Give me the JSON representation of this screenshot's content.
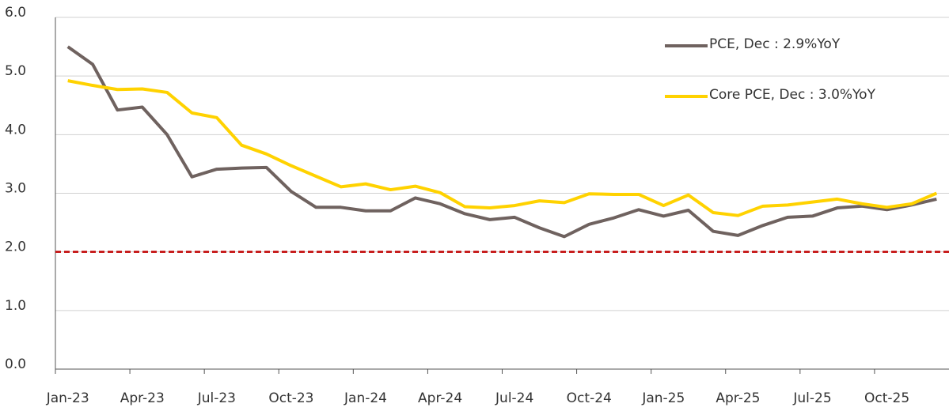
{
  "chart_data": {
    "type": "line",
    "categories": [
      "Jan-23",
      null,
      null,
      "Apr-23",
      null,
      null,
      "Jul-23",
      null,
      null,
      "Oct-23",
      null,
      null,
      "Jan-24",
      null,
      null,
      "Apr-24",
      null,
      null,
      "Jul-24",
      null,
      null,
      "Oct-24",
      null,
      null,
      "Jan-25",
      null,
      null,
      "Apr-25",
      null,
      null,
      "Jul-25",
      null,
      null,
      "Oct-25",
      null,
      null
    ],
    "series": [
      {
        "name": "PCE, Dec : 2.9%YoY",
        "color": "#6f625f",
        "values": [
          5.5,
          5.2,
          4.42,
          4.47,
          4.0,
          3.28,
          3.41,
          3.43,
          3.44,
          3.03,
          2.76,
          2.76,
          2.7,
          2.7,
          2.92,
          2.82,
          2.65,
          2.55,
          2.59,
          2.41,
          2.26,
          2.47,
          2.58,
          2.72,
          2.61,
          2.71,
          2.35,
          2.28,
          2.45,
          2.59,
          2.61,
          2.75,
          2.78,
          2.72,
          2.8,
          2.9
        ]
      },
      {
        "name": "Core PCE, Dec : 3.0%YoY",
        "color": "#ffd200",
        "values": [
          4.92,
          4.84,
          4.77,
          4.78,
          4.72,
          4.37,
          4.29,
          3.82,
          3.67,
          3.47,
          3.29,
          3.11,
          3.16,
          3.06,
          3.12,
          3.01,
          2.77,
          2.75,
          2.79,
          2.87,
          2.84,
          2.99,
          2.98,
          2.98,
          2.79,
          2.97,
          2.67,
          2.62,
          2.78,
          2.8,
          2.85,
          2.9,
          2.82,
          2.76,
          2.82,
          3.0
        ]
      }
    ],
    "ylim": [
      0,
      6
    ],
    "yticks": [
      {
        "value": 0,
        "label": "0.0"
      },
      {
        "value": 1,
        "label": "1.0"
      },
      {
        "value": 2,
        "label": "2.0"
      },
      {
        "value": 3,
        "label": "3.0"
      },
      {
        "value": 4,
        "label": "4.0"
      },
      {
        "value": 5,
        "label": "5.0"
      },
      {
        "value": 6,
        "label": "6.0"
      }
    ],
    "grid": true,
    "reference_line": {
      "value": 2,
      "color": "#c00000"
    },
    "legend": "top-right"
  }
}
